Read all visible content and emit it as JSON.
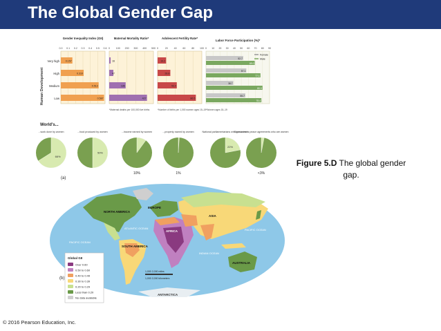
{
  "slide": {
    "title": "The Global Gender Gap",
    "caption_bold": "Figure 5.D",
    "caption_rest": " The global gender gap.",
    "copyright": "© 2016 Pearson Education, Inc."
  },
  "panel_a": {
    "label": "(a)",
    "row_axis_title": "Human Development",
    "rows": [
      "Very high",
      "High",
      "Medium",
      "Low"
    ],
    "charts": [
      {
        "title": "Gender Inequality Index (GII)",
        "ticks": [
          "0.0",
          "0.1",
          "0.2",
          "0.3",
          "0.4",
          "0.5",
          "0.6"
        ],
        "min": 0,
        "max": 0.6,
        "color": "#f0a050",
        "values": [
          0.157,
          0.31,
          0.513,
          0.587
        ],
        "labels": [
          "0.157",
          "0.310",
          "0.513",
          "0.587"
        ],
        "note": ""
      },
      {
        "title": "Maternal Mortality Ratio*",
        "ticks": [
          "0",
          "100",
          "200",
          "300",
          "400",
          "500"
        ],
        "min": 0,
        "max": 500,
        "color": "#a070b0",
        "values": [
          16,
          47,
          186,
          427
        ],
        "labels": [
          "16",
          "47",
          "186",
          "427"
        ],
        "note": "*Maternal deaths per 100,000 live births"
      },
      {
        "title": "Adolescent Fertility Rate*",
        "ticks": [
          "0",
          "20",
          "40",
          "60",
          "80",
          "100"
        ],
        "min": 0,
        "max": 100,
        "color": "#c84848",
        "values": [
          19.2,
          28.8,
          43.4,
          86.5
        ],
        "labels": [
          "19.2",
          "28.8",
          "43.4",
          "86.5"
        ],
        "note": "*Number of births per 1,000 women ages 15–19"
      }
    ],
    "labor": {
      "title": "Labor Force Participation (%)*",
      "ticks": [
        "0",
        "10",
        "20",
        "30",
        "40",
        "50",
        "60",
        "70",
        "80",
        "90"
      ],
      "max": 90,
      "female_color": "#c8c8c8",
      "male_color": "#7aa860",
      "female": [
        52.7,
        57.1,
        38.7,
        55.7
      ],
      "male": [
        69.0,
        77.1,
        80.0,
        78.4
      ],
      "female_labels": [
        "52.7",
        "57.1",
        "38.7",
        "55.7"
      ],
      "male_labels": [
        "69.0",
        "77.1",
        "80.0",
        "78.4"
      ],
      "legend_female": "Female",
      "legend_male": "Male",
      "note": "*Women ages 15–19"
    },
    "worlds_title": "World's...",
    "pies": [
      {
        "label": "...work done by women",
        "percent": 66,
        "text": "66%",
        "outside": false
      },
      {
        "label": "...food produced by women",
        "percent": 50,
        "text": "50%",
        "outside": false
      },
      {
        "label": "...income earned by women",
        "percent": 10,
        "text": "10%",
        "outside": true
      },
      {
        "label": "...property owned by women",
        "percent": 1,
        "text": "1%",
        "outside": true
      },
      {
        "label": "National parliamentarians who are women",
        "percent": 22,
        "text": "22%",
        "outside": false
      },
      {
        "label": "Signatories to peace agreements who are women",
        "percent": 3,
        "text": "<3%",
        "outside": true
      }
    ],
    "pie_color": "#7aa050",
    "pie_highlight": "#d8eab0"
  },
  "panel_b": {
    "label": "(b)",
    "legend_title": "Global GII",
    "legend": [
      {
        "label": "Over 0.60",
        "color": "#8a3a80"
      },
      {
        "label": "0.50 to 0.60",
        "color": "#c080c0"
      },
      {
        "label": "0.40 to 0.49",
        "color": "#f0a060"
      },
      {
        "label": "0.30 to 0.39",
        "color": "#f8d878"
      },
      {
        "label": "0.20 to 0.29",
        "color": "#c8e090"
      },
      {
        "label": "Less than 0.20",
        "color": "#6a9a48"
      },
      {
        "label": "No data available",
        "color": "#cfcfcf"
      }
    ],
    "regions": {
      "north_america": "NORTH AMERICA",
      "europe": "EUROPE",
      "asia": "ASIA",
      "africa": "AFRICA",
      "south_america": "SOUTH AMERICA",
      "australia": "AUSTRALIA",
      "antarctica": "ANTARCTICA",
      "atlantic": "ATLANTIC OCEAN",
      "pacific_left": "PACIFIC OCEAN",
      "pacific_right": "PACIFIC OCEAN",
      "indian": "INDIAN OCEAN"
    },
    "ocean_color": "#8ec8e8",
    "scale_miles": "1,000   2,000 miles",
    "scale_km": "1,000   2,000 kilometers"
  }
}
